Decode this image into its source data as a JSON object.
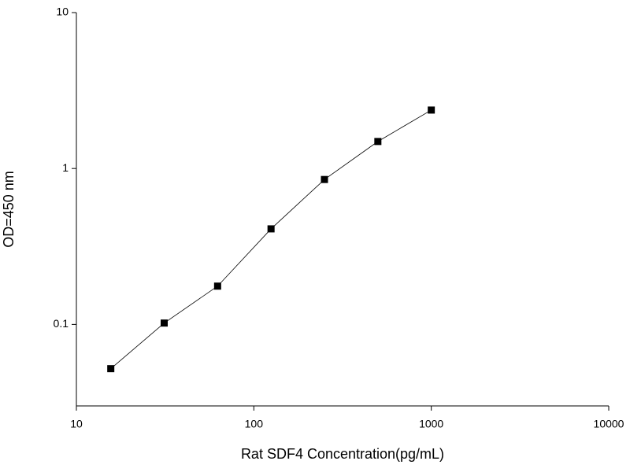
{
  "chart_data": {
    "type": "line",
    "xlabel": "Rat SDF4 Concentration(pg/mL)",
    "ylabel": "OD=450 nm",
    "x": [
      15.625,
      31.25,
      62.5,
      125,
      250,
      500,
      1000
    ],
    "series": [
      {
        "values": [
          0.052,
          0.102,
          0.176,
          0.41,
          0.85,
          1.49,
          2.37
        ],
        "color": "#000000"
      }
    ],
    "xlim": [
      10,
      10000
    ],
    "xticks": [
      10,
      100,
      1000,
      10000
    ],
    "ylim": [
      0.03,
      10
    ],
    "yticks": [
      0.1,
      1,
      10
    ],
    "xscale": "log",
    "yscale": "log",
    "markers": true
  }
}
